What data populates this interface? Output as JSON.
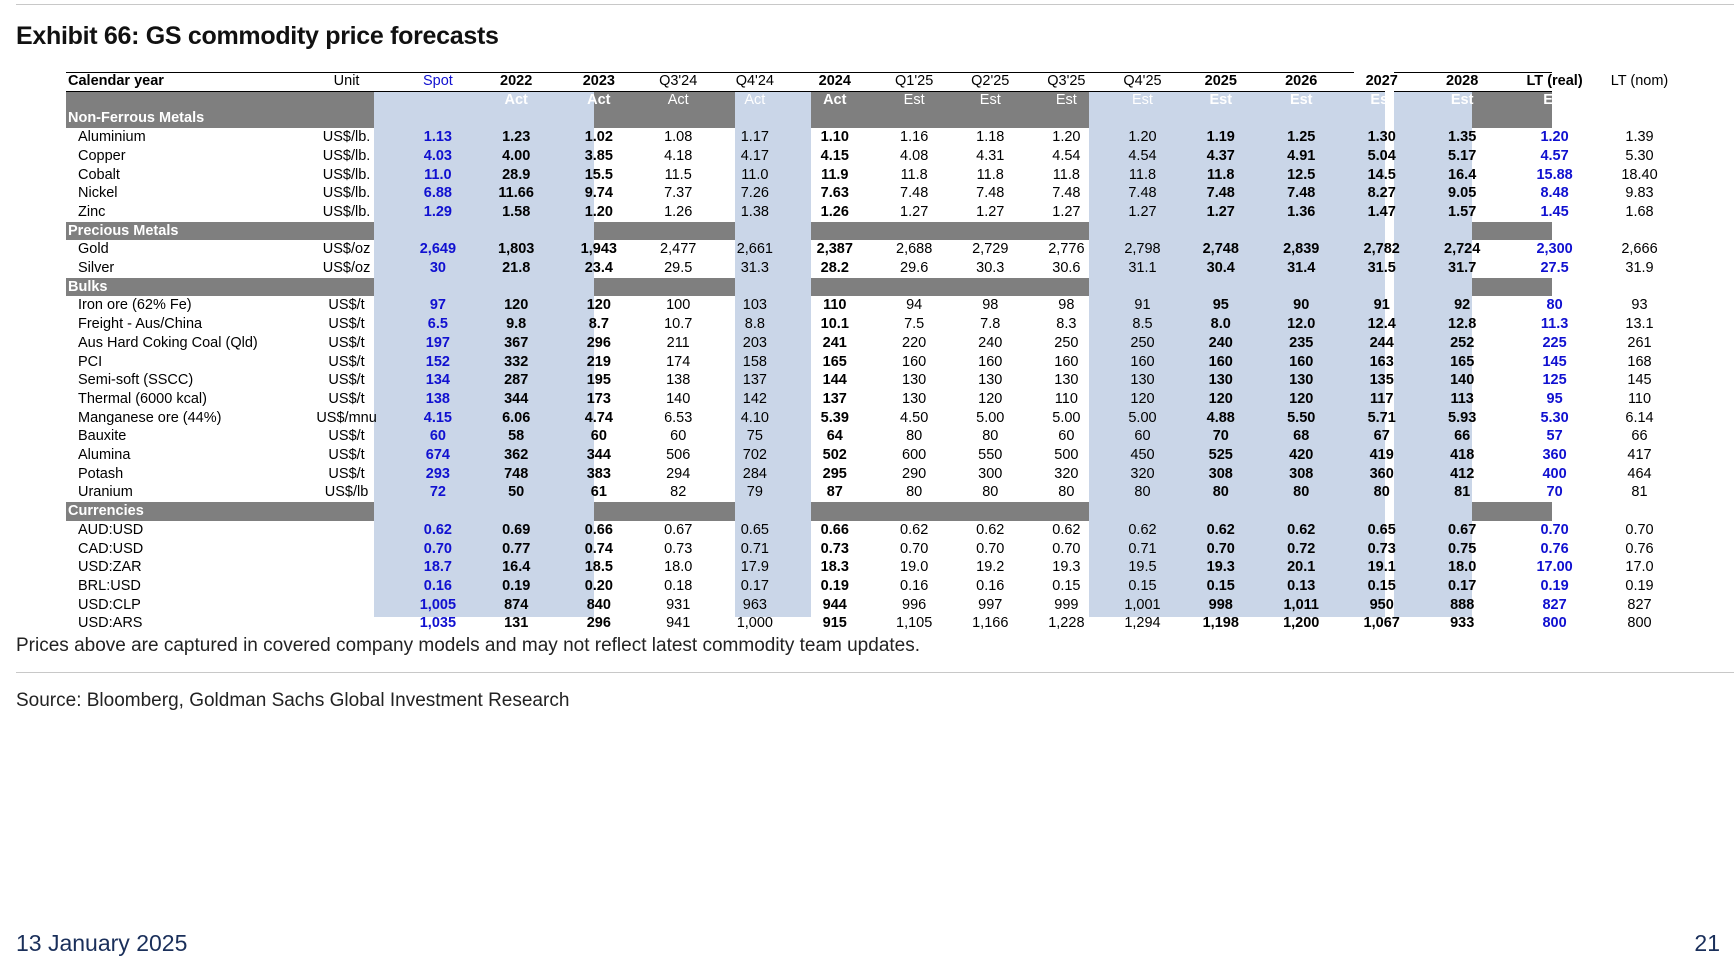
{
  "exhibit": {
    "title": "Exhibit 66: GS commodity price forecasts",
    "note": "Prices above are captured in covered company models and may not reflect latest commodity team updates.",
    "source": "Source: Bloomberg, Goldman Sachs Global Investment Research"
  },
  "footer": {
    "date": "13 January 2025",
    "page": "21"
  },
  "colors": {
    "shade": "#cad6e8",
    "section_band": "#7f7f7f",
    "spot_blue": "#1010d0",
    "footer_text": "#1a2f5a"
  },
  "table": {
    "header": [
      "Calendar year",
      "Unit",
      "Spot",
      "2022",
      "2023",
      "Q3'24",
      "Q4'24",
      "2024",
      "Q1'25",
      "Q2'25",
      "Q3'25",
      "Q4'25",
      "2025",
      "2026",
      "2027",
      "2028",
      "",
      "LT (real)",
      "LT (nom)"
    ],
    "subheader": [
      "",
      "",
      "",
      "Act",
      "Act",
      "Act",
      "Act",
      "Act",
      "Est",
      "Est",
      "Est",
      "Est",
      "Est",
      "Est",
      "Est",
      "Est",
      "",
      "Est",
      "Est"
    ],
    "sections": [
      {
        "name": "Non-Ferrous Metals",
        "rows": [
          [
            "Aluminium",
            "US$/lb.",
            "1.13",
            "1.23",
            "1.02",
            "1.08",
            "1.17",
            "1.10",
            "1.16",
            "1.18",
            "1.20",
            "1.20",
            "1.19",
            "1.25",
            "1.30",
            "1.35",
            "",
            "1.20",
            "1.39"
          ],
          [
            "Copper",
            "US$/lb.",
            "4.03",
            "4.00",
            "3.85",
            "4.18",
            "4.17",
            "4.15",
            "4.08",
            "4.31",
            "4.54",
            "4.54",
            "4.37",
            "4.91",
            "5.04",
            "5.17",
            "",
            "4.57",
            "5.30"
          ],
          [
            "Cobalt",
            "US$/lb.",
            "11.0",
            "28.9",
            "15.5",
            "11.5",
            "11.0",
            "11.9",
            "11.8",
            "11.8",
            "11.8",
            "11.8",
            "11.8",
            "12.5",
            "14.5",
            "16.4",
            "",
            "15.88",
            "18.40"
          ],
          [
            "Nickel",
            "US$/lb.",
            "6.88",
            "11.66",
            "9.74",
            "7.37",
            "7.26",
            "7.63",
            "7.48",
            "7.48",
            "7.48",
            "7.48",
            "7.48",
            "7.48",
            "8.27",
            "9.05",
            "",
            "8.48",
            "9.83"
          ],
          [
            "Zinc",
            "US$/lb.",
            "1.29",
            "1.58",
            "1.20",
            "1.26",
            "1.38",
            "1.26",
            "1.27",
            "1.27",
            "1.27",
            "1.27",
            "1.27",
            "1.36",
            "1.47",
            "1.57",
            "",
            "1.45",
            "1.68"
          ]
        ]
      },
      {
        "name": "Precious Metals",
        "rows": [
          [
            "Gold",
            "US$/oz",
            "2,649",
            "1,803",
            "1,943",
            "2,477",
            "2,661",
            "2,387",
            "2,688",
            "2,729",
            "2,776",
            "2,798",
            "2,748",
            "2,839",
            "2,782",
            "2,724",
            "",
            "2,300",
            "2,666"
          ],
          [
            "Silver",
            "US$/oz",
            "30",
            "21.8",
            "23.4",
            "29.5",
            "31.3",
            "28.2",
            "29.6",
            "30.3",
            "30.6",
            "31.1",
            "30.4",
            "31.4",
            "31.5",
            "31.7",
            "",
            "27.5",
            "31.9"
          ]
        ]
      },
      {
        "name": "Bulks",
        "rows": [
          [
            "Iron ore (62% Fe)",
            "US$/t",
            "97",
            "120",
            "120",
            "100",
            "103",
            "110",
            "94",
            "98",
            "98",
            "91",
            "95",
            "90",
            "91",
            "92",
            "",
            "80",
            "93"
          ],
          [
            "Freight - Aus/China",
            "US$/t",
            "6.5",
            "9.8",
            "8.7",
            "10.7",
            "8.8",
            "10.1",
            "7.5",
            "7.8",
            "8.3",
            "8.5",
            "8.0",
            "12.0",
            "12.4",
            "12.8",
            "",
            "11.3",
            "13.1"
          ],
          [
            "Aus Hard Coking Coal (Qld)",
            "US$/t",
            "197",
            "367",
            "296",
            "211",
            "203",
            "241",
            "220",
            "240",
            "250",
            "250",
            "240",
            "235",
            "244",
            "252",
            "",
            "225",
            "261"
          ],
          [
            "PCI",
            "US$/t",
            "152",
            "332",
            "219",
            "174",
            "158",
            "165",
            "160",
            "160",
            "160",
            "160",
            "160",
            "160",
            "163",
            "165",
            "",
            "145",
            "168"
          ],
          [
            "Semi-soft (SSCC)",
            "US$/t",
            "134",
            "287",
            "195",
            "138",
            "137",
            "144",
            "130",
            "130",
            "130",
            "130",
            "130",
            "130",
            "135",
            "140",
            "",
            "125",
            "145"
          ],
          [
            "Thermal (6000 kcal)",
            "US$/t",
            "138",
            "344",
            "173",
            "140",
            "142",
            "137",
            "130",
            "120",
            "110",
            "120",
            "120",
            "120",
            "117",
            "113",
            "",
            "95",
            "110"
          ],
          [
            "Manganese ore (44%)",
            "US$/mnu",
            "4.15",
            "6.06",
            "4.74",
            "6.53",
            "4.10",
            "5.39",
            "4.50",
            "5.00",
            "5.00",
            "5.00",
            "4.88",
            "5.50",
            "5.71",
            "5.93",
            "",
            "5.30",
            "6.14"
          ],
          [
            "Bauxite",
            "US$/t",
            "60",
            "58",
            "60",
            "60",
            "75",
            "64",
            "80",
            "80",
            "60",
            "60",
            "70",
            "68",
            "67",
            "66",
            "",
            "57",
            "66"
          ],
          [
            "Alumina",
            "US$/t",
            "674",
            "362",
            "344",
            "506",
            "702",
            "502",
            "600",
            "550",
            "500",
            "450",
            "525",
            "420",
            "419",
            "418",
            "",
            "360",
            "417"
          ],
          [
            "Potash",
            "US$/t",
            "293",
            "748",
            "383",
            "294",
            "284",
            "295",
            "290",
            "300",
            "320",
            "320",
            "308",
            "308",
            "360",
            "412",
            "",
            "400",
            "464"
          ],
          [
            "Uranium",
            "US$/lb",
            "72",
            "50",
            "61",
            "82",
            "79",
            "87",
            "80",
            "80",
            "80",
            "80",
            "80",
            "80",
            "80",
            "81",
            "",
            "70",
            "81"
          ]
        ]
      },
      {
        "name": "Currencies",
        "rows": [
          [
            "AUD:USD",
            "",
            "0.62",
            "0.69",
            "0.66",
            "0.67",
            "0.65",
            "0.66",
            "0.62",
            "0.62",
            "0.62",
            "0.62",
            "0.62",
            "0.62",
            "0.65",
            "0.67",
            "",
            "0.70",
            "0.70"
          ],
          [
            "CAD:USD",
            "",
            "0.70",
            "0.77",
            "0.74",
            "0.73",
            "0.71",
            "0.73",
            "0.70",
            "0.70",
            "0.70",
            "0.71",
            "0.70",
            "0.72",
            "0.73",
            "0.75",
            "",
            "0.76",
            "0.76"
          ],
          [
            "USD:ZAR",
            "",
            "18.7",
            "16.4",
            "18.5",
            "18.0",
            "17.9",
            "18.3",
            "19.0",
            "19.2",
            "19.3",
            "19.5",
            "19.3",
            "20.1",
            "19.1",
            "18.0",
            "",
            "17.00",
            "17.0"
          ],
          [
            "BRL:USD",
            "",
            "0.16",
            "0.19",
            "0.20",
            "0.18",
            "0.17",
            "0.19",
            "0.16",
            "0.16",
            "0.15",
            "0.15",
            "0.15",
            "0.13",
            "0.15",
            "0.17",
            "",
            "0.19",
            "0.19"
          ],
          [
            "USD:CLP",
            "",
            "1,005",
            "874",
            "840",
            "931",
            "963",
            "944",
            "996",
            "997",
            "999",
            "1,001",
            "998",
            "1,011",
            "950",
            "888",
            "",
            "827",
            "827"
          ],
          [
            "USD:ARS",
            "",
            "1,035",
            "131",
            "296",
            "941",
            "1,000",
            "915",
            "1,105",
            "1,166",
            "1,228",
            "1,294",
            "1,198",
            "1,200",
            "1,067",
            "933",
            "",
            "800",
            "800"
          ]
        ]
      }
    ]
  }
}
